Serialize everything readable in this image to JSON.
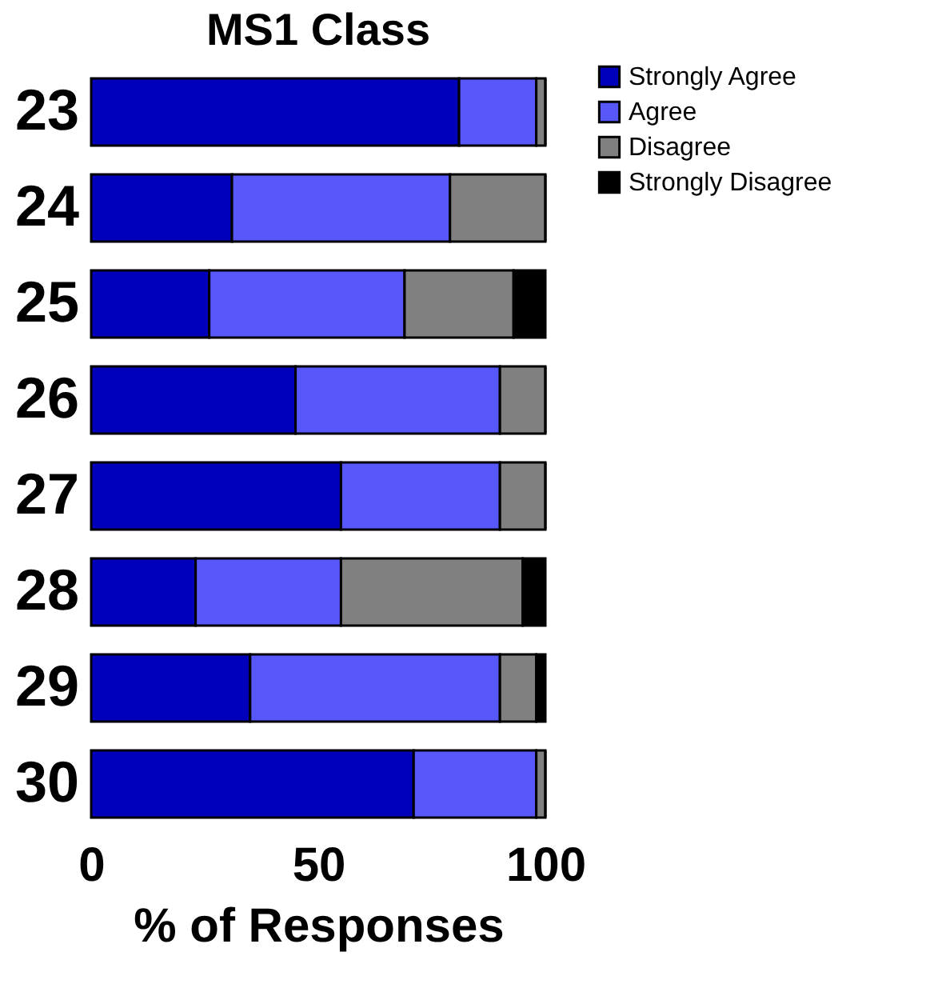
{
  "chart_data": {
    "type": "bar",
    "orientation": "horizontal",
    "stacked": true,
    "title": "MS1 Class",
    "xlabel": "% of Responses",
    "categories": [
      "23",
      "24",
      "25",
      "26",
      "27",
      "28",
      "29",
      "30"
    ],
    "series": [
      {
        "name": "Strongly Agree",
        "color": "#0000bb",
        "values": [
          81,
          31,
          26,
          45,
          55,
          23,
          35,
          71
        ]
      },
      {
        "name": "Agree",
        "color": "#5757fa",
        "values": [
          17,
          48,
          43,
          45,
          35,
          32,
          55,
          27
        ]
      },
      {
        "name": "Disagree",
        "color": "#808080",
        "values": [
          2,
          21,
          24,
          10,
          10,
          40,
          8,
          2
        ]
      },
      {
        "name": "Strongly Disagree",
        "color": "#000000",
        "values": [
          0,
          0,
          7,
          0,
          0,
          5,
          2,
          0
        ]
      }
    ],
    "xlim": [
      0,
      100
    ],
    "xticks": [
      0,
      50,
      100
    ],
    "grid": false,
    "legend": "top right"
  }
}
